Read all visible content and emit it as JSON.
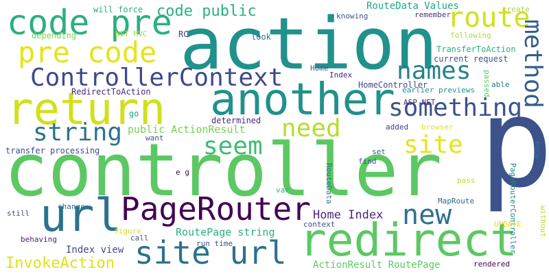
{
  "words": [
    {
      "text": "controller",
      "color": "#5cc863"
    },
    {
      "text": "p",
      "color": "#3b528b"
    },
    {
      "text": "action",
      "color": "#21918c"
    },
    {
      "text": "redirect",
      "color": "#5cc863"
    },
    {
      "text": "another",
      "color": "#21918c"
    },
    {
      "text": "return",
      "color": "#d0e11c"
    },
    {
      "text": "code pre",
      "color": "#2ab07f"
    },
    {
      "text": "url",
      "color": "#2c728e"
    },
    {
      "text": "pre code",
      "color": "#e5e419"
    },
    {
      "text": "PageRouter",
      "color": "#440154"
    },
    {
      "text": "site url",
      "color": "#2c728e"
    },
    {
      "text": "ControllerContext",
      "color": "#3e4a89"
    },
    {
      "text": "route",
      "color": "#d0e11c"
    },
    {
      "text": "names",
      "color": "#26828e"
    },
    {
      "text": "method",
      "color": "#355f8d"
    },
    {
      "text": "something",
      "color": "#3b528b"
    },
    {
      "text": "site",
      "color": "#e5e419"
    },
    {
      "text": "string",
      "color": "#2c728e"
    },
    {
      "text": "need",
      "color": "#b5de2b"
    },
    {
      "text": "seem",
      "color": "#3fbc73"
    },
    {
      "text": "new",
      "color": "#2c728e"
    },
    {
      "text": "code public",
      "color": "#2ab07f"
    },
    {
      "text": "InvokeAction",
      "color": "#dde318"
    },
    {
      "text": "Home Index",
      "color": "#482878"
    },
    {
      "text": "RouteData Values",
      "color": "#21a685"
    },
    {
      "text": "public ActionResult",
      "color": "#75d054"
    },
    {
      "text": "RoutePage string",
      "color": "#2ab07f"
    },
    {
      "text": "ActionResult RoutePage",
      "color": "#5cc863"
    },
    {
      "text": "Index view",
      "color": "#3e4a89"
    },
    {
      "text": "transfer processing",
      "color": "#3e4a89"
    },
    {
      "text": "TransferToAction",
      "color": "#2ab07f"
    },
    {
      "text": "current request",
      "color": "#3b528b"
    },
    {
      "text": "HomeController",
      "color": "#3e4a89"
    },
    {
      "text": "earlier previews",
      "color": "#21918c"
    },
    {
      "text": "RedirectToAction",
      "color": "#482878"
    },
    {
      "text": "determined",
      "color": "#482878"
    },
    {
      "text": "will force",
      "color": "#2ab07f"
    },
    {
      "text": "knowing",
      "color": "#38598c"
    },
    {
      "text": "remember",
      "color": "#46327e"
    },
    {
      "text": "create",
      "color": "#a8db34"
    },
    {
      "text": "following",
      "color": "#a8db34"
    },
    {
      "text": "depending",
      "color": "#7ad151"
    },
    {
      "text": "NET MVC",
      "color": "#a2da37"
    },
    {
      "text": "RC",
      "color": "#443983"
    },
    {
      "text": "look",
      "color": "#2c728e"
    },
    {
      "text": "Home",
      "color": "#31688e"
    },
    {
      "text": "Index",
      "color": "#482878"
    },
    {
      "text": "ASP NET",
      "color": "#482878"
    },
    {
      "text": "passed",
      "color": "#5cc863"
    },
    {
      "text": "able",
      "color": "#2a788e"
    },
    {
      "text": "added",
      "color": "#433e85"
    },
    {
      "text": "browser",
      "color": "#dde318"
    },
    {
      "text": "know",
      "color": "#2a788e"
    },
    {
      "text": "go",
      "color": "#1f9e89"
    },
    {
      "text": "want",
      "color": "#3b528b"
    },
    {
      "text": "e g",
      "color": "#440154"
    },
    {
      "text": "set",
      "color": "#355f8d"
    },
    {
      "text": "find",
      "color": "#3b528b"
    },
    {
      "text": "RouteData",
      "color": "#2c728e"
    },
    {
      "text": "var",
      "color": "#2ab07f"
    },
    {
      "text": "pass",
      "color": "#b5de2b"
    },
    {
      "text": "MapRoute",
      "color": "#31688e"
    },
    {
      "text": "PageRouterController",
      "color": "#26828e"
    },
    {
      "text": "without",
      "color": "#b5de2b"
    },
    {
      "text": "still",
      "color": "#3b528b"
    },
    {
      "text": "change",
      "color": "#2c728e"
    },
    {
      "text": "context",
      "color": "#3e4a89"
    },
    {
      "text": "figure",
      "color": "#d0e11c"
    },
    {
      "text": "call",
      "color": "#3b528b"
    },
    {
      "text": "behaving",
      "color": "#481f70"
    },
    {
      "text": "run time",
      "color": "#3b528b"
    },
    {
      "text": "UPDATE",
      "color": "#dde318"
    },
    {
      "text": "rendered",
      "color": "#440154"
    }
  ]
}
